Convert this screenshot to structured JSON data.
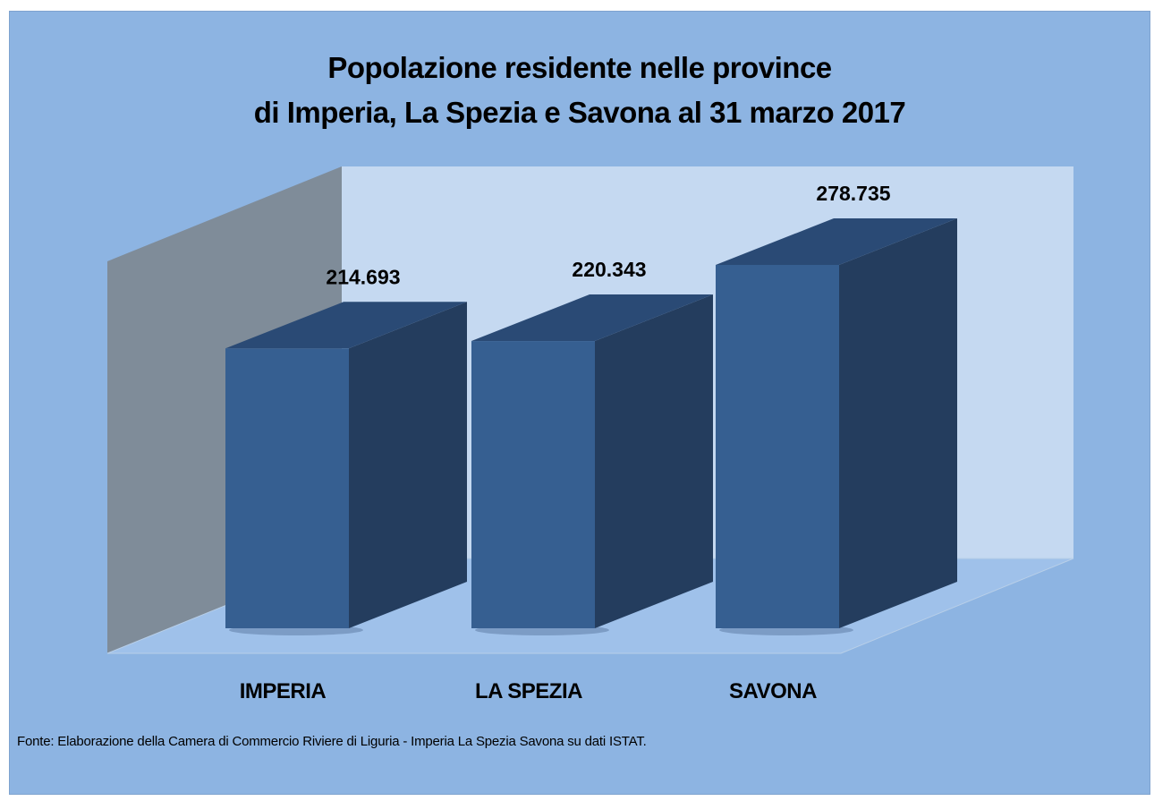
{
  "chart_data": {
    "type": "bar",
    "title_lines": [
      "Popolazione residente nelle province",
      "di Imperia, La Spezia e Savona al 31 marzo 2017"
    ],
    "categories": [
      "IMPERIA",
      "LA SPEZIA",
      "SAVONA"
    ],
    "values": [
      214693,
      220343,
      278735
    ],
    "value_labels": [
      "214.693",
      "220.343",
      "278.735"
    ],
    "grid": false,
    "legend": "none",
    "style": "3d-column"
  },
  "source_note": "Fonte: Elaborazione della Camera di Commercio Riviere di Liguria - Imperia La Spezia Savona su dati ISTAT.",
  "colors": {
    "background": "#8db4e2",
    "back_wall": "#c5d9f1",
    "side_wall": "#7f8c99",
    "floor": "#9fc1ea",
    "bar_front": "#365f91",
    "bar_side": "#243d5e",
    "bar_top": "#2a4a75"
  }
}
